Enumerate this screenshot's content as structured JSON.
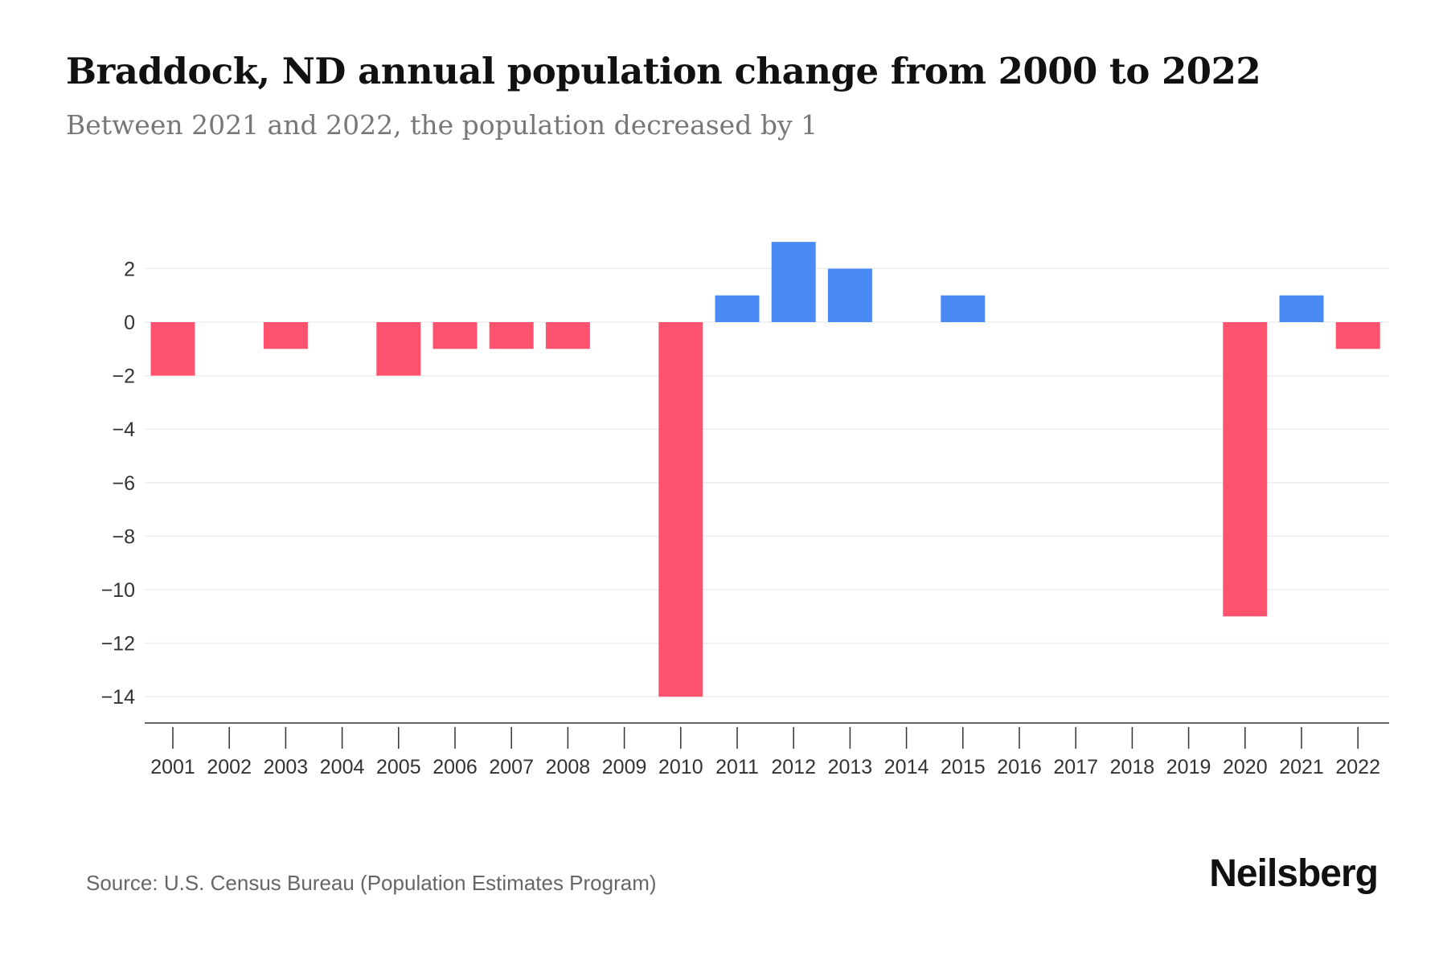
{
  "colors": {
    "positive": "#4a8af4",
    "negative": "#ff526e",
    "grid": "#eeeeee",
    "axis": "#333333"
  },
  "chart_data": {
    "type": "bar",
    "title": "Braddock, ND annual population change from 2000 to 2022",
    "subtitle": "Between 2021 and 2022, the population decreased by 1",
    "xlabel": "",
    "ylabel": "",
    "categories": [
      "2001",
      "2002",
      "2003",
      "2004",
      "2005",
      "2006",
      "2007",
      "2008",
      "2009",
      "2010",
      "2011",
      "2012",
      "2013",
      "2014",
      "2015",
      "2016",
      "2017",
      "2018",
      "2019",
      "2020",
      "2021",
      "2022"
    ],
    "values": [
      -2,
      0,
      -1,
      0,
      -2,
      -1,
      -1,
      -1,
      0,
      -14,
      1,
      3,
      2,
      0,
      1,
      0,
      0,
      0,
      0,
      -11,
      1,
      -1
    ],
    "yticks": [
      2,
      0,
      -2,
      -4,
      -6,
      -8,
      -10,
      -12,
      -14
    ],
    "ytick_labels": [
      "2",
      "0",
      "−2",
      "−4",
      "−6",
      "−8",
      "−10",
      "−12",
      "−14"
    ],
    "ylim": [
      -15,
      3
    ],
    "grid": true
  },
  "footer": {
    "source": "Source: U.S. Census Bureau (Population Estimates Program)",
    "logo": "Neilsberg"
  }
}
